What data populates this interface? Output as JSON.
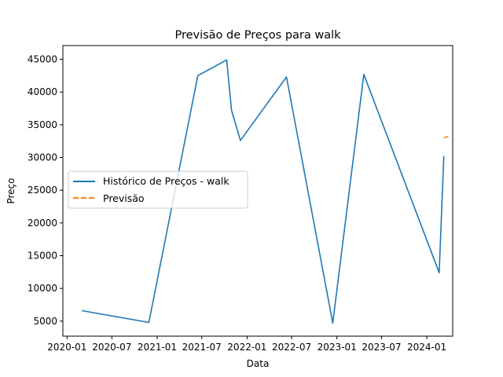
{
  "chart_data": {
    "type": "line",
    "title": "Previsão de Preços para walk",
    "xlabel": "Data",
    "ylabel": "Preço",
    "x_ticks": [
      "2020-01",
      "2020-07",
      "2021-01",
      "2021-07",
      "2022-01",
      "2022-07",
      "2023-01",
      "2023-07",
      "2024-01"
    ],
    "y_ticks": [
      5000,
      10000,
      15000,
      20000,
      25000,
      30000,
      35000,
      40000,
      45000
    ],
    "xlim": [
      "2019-12-15",
      "2024-04-15"
    ],
    "ylim": [
      2700,
      47100
    ],
    "grid": false,
    "legend_position": "center-left",
    "series": [
      {
        "name": "Histórico de Preços - walk",
        "color": "#1f77b4",
        "style": "solid",
        "x": [
          "2020-03-01",
          "2020-11-28",
          "2021-06-15",
          "2021-10-10",
          "2021-10-30",
          "2021-12-05",
          "2022-06-10",
          "2022-12-15",
          "2023-04-20",
          "2024-02-20",
          "2024-03-10"
        ],
        "y": [
          6600,
          4800,
          42500,
          44900,
          37200,
          32600,
          42300,
          4700,
          42700,
          12400,
          30200
        ]
      },
      {
        "name": "Previsão",
        "color": "#ff7f0e",
        "style": "dashed",
        "x": [
          "2024-03-10",
          "2024-04-05"
        ],
        "y": [
          33000,
          33300
        ]
      }
    ]
  }
}
